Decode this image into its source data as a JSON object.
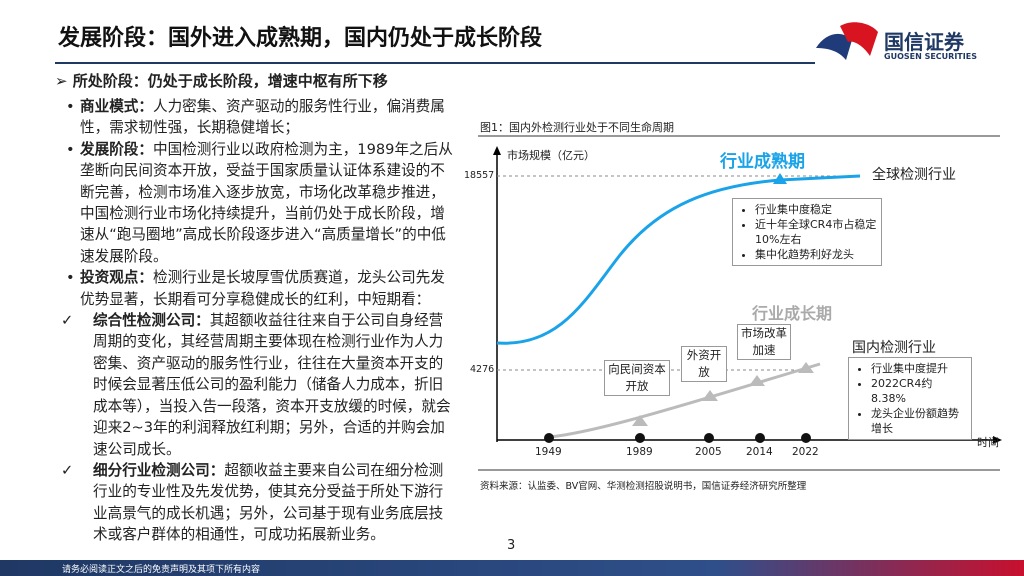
{
  "header": {
    "title": "发展阶段：国外进入成熟期，国内仍处于成长阶段",
    "logo_cn": "国信证券",
    "logo_en": "GUOSEN SECURITIES"
  },
  "section": {
    "heading": "所处阶段：仍处于成长阶段，增速中枢有所下移",
    "bullets": [
      {
        "label": "商业模式：",
        "text": "人力密集、资产驱动的服务性行业，偏消费属性，需求韧性强，长期稳健增长；"
      },
      {
        "label": "发展阶段：",
        "text": "中国检测行业以政府检测为主，1989年之后从垄断向民间资本开放，受益于国家质量认证体系建设的不断完善，检测市场准入逐步放宽，市场化改革稳步推进，中国检测行业市场化持续提升，当前仍处于成长阶段，增速从“跑马圈地”高成长阶段逐步进入“高质量增长”的中低速发展阶段。"
      },
      {
        "label": "投资观点：",
        "text": "检测行业是长坡厚雪优质赛道，龙头公司先发优势显著，长期看可分享稳健成长的红利，中短期看："
      }
    ],
    "checks": [
      {
        "label": "综合性检测公司：",
        "text": "其超额收益往往来自于公司自身经营周期的变化，其经营周期主要体现在检测行业作为人力密集、资产驱动的服务性行业，往往在大量资本开支的时候会显著压低公司的盈利能力（储备人力成本，折旧成本等），当投入告一段落，资本开支放缓的时候，就会迎来2~3年的利润释放红利期；另外，合适的并购会加速公司成长。"
      },
      {
        "label": "细分行业检测公司：",
        "text": "超额收益主要来自公司在细分检测行业的专业性及先发优势，使其充分受益于所处下游行业高景气的成长机遇；另外，公司基于现有业务底层技术或客户群体的相通性，可成功拓展新业务。"
      }
    ]
  },
  "figure": {
    "caption": "图1：国内外检测行业处于不同生命周期",
    "y_axis_label": "市场规模（亿元）",
    "y_ticks": [
      18557,
      4276
    ],
    "x_axis_label": "时间",
    "years": [
      1949,
      1989,
      2005,
      2014,
      2022
    ],
    "mature_phase": "行业成熟期",
    "growth_phase": "行业成长期",
    "global_label": "全球检测行业",
    "domestic_label": "国内检测行业",
    "global_notes": [
      "行业集中度稳定",
      "近十年全球CR4市占稳定10%左右",
      "集中化趋势利好龙头"
    ],
    "domestic_notes": [
      "行业集中度提升",
      "2022CR4约8.38%",
      "龙头企业份额趋势增长"
    ],
    "milestones": [
      "向民间资本开放",
      "外资开放",
      "市场改革加速"
    ],
    "source": "资料来源：认监委、BV官网、华测检测招股说明书，国信证券经济研究所整理"
  },
  "footer": {
    "disclaimer": "请务必阅读正文之后的免责声明及其项下所有内容",
    "page_number": "3"
  }
}
